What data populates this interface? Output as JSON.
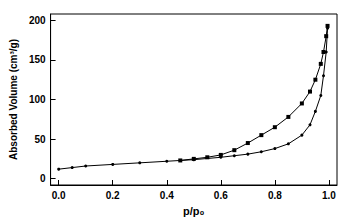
{
  "chart_data": {
    "type": "line",
    "x_label": "p/p₀",
    "y_label": "Absorbed Volume (cm³/g)",
    "xlim": [
      -0.03,
      1.03
    ],
    "ylim": [
      -8,
      208
    ],
    "xticks": [
      {
        "value": 0,
        "label": "0.0"
      },
      0.2,
      0.4,
      0.6,
      0.8,
      {
        "value": 1,
        "label": "1.0"
      }
    ],
    "yticks": [
      0,
      50,
      100,
      150,
      200
    ],
    "grid": false,
    "series": [
      {
        "color": "#000000",
        "marker": "circle",
        "line_style": "solid",
        "x": [
          0.0,
          0.05,
          0.1,
          0.2,
          0.3,
          0.4,
          0.5,
          0.6,
          0.65,
          0.7,
          0.75,
          0.8,
          0.85,
          0.9,
          0.93,
          0.95,
          0.97,
          0.98,
          0.99,
          0.995
        ],
        "values": [
          12,
          14,
          16,
          18,
          20,
          22,
          24,
          27,
          29,
          31,
          34,
          38,
          44,
          55,
          68,
          85,
          105,
          130,
          160,
          190
        ]
      },
      {
        "color": "#000000",
        "marker": "square",
        "line_style": "solid",
        "x": [
          0.45,
          0.5,
          0.55,
          0.6,
          0.65,
          0.7,
          0.75,
          0.8,
          0.85,
          0.9,
          0.93,
          0.95,
          0.97,
          0.98,
          0.99,
          0.995
        ],
        "values": [
          23,
          25,
          27,
          30,
          36,
          45,
          55,
          65,
          78,
          95,
          110,
          125,
          145,
          160,
          180,
          193
        ]
      }
    ]
  }
}
